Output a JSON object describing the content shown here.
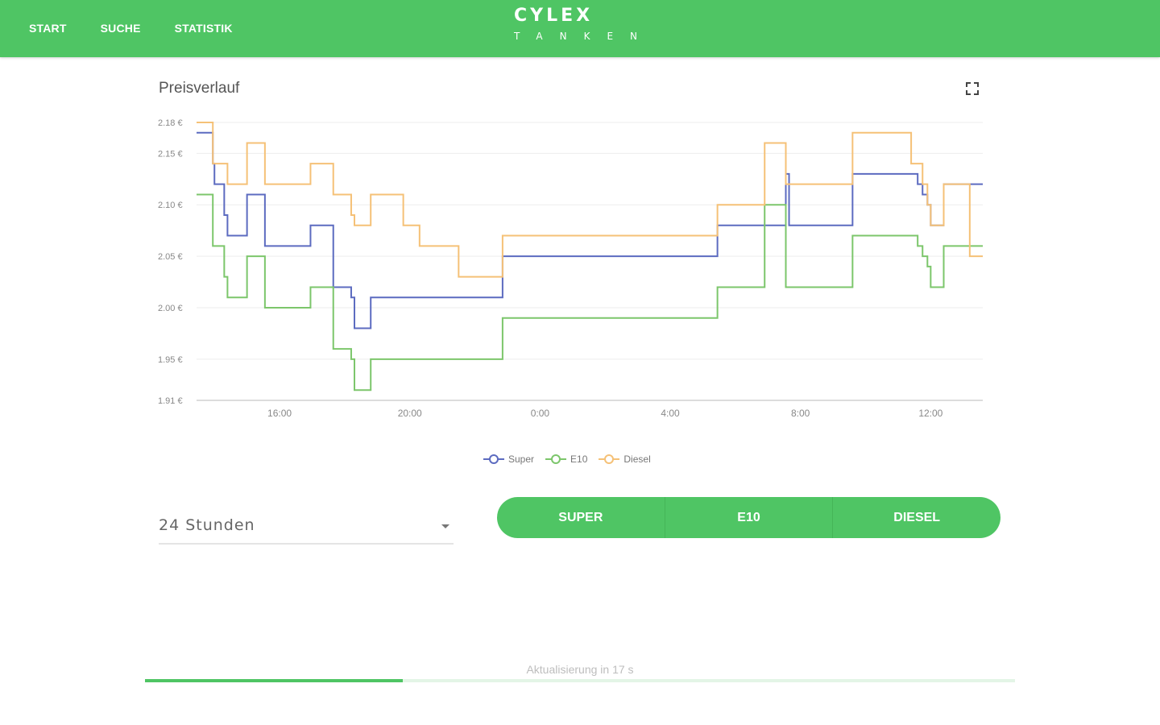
{
  "nav": {
    "items": [
      {
        "label": "START"
      },
      {
        "label": "SUCHE"
      },
      {
        "label": "STATISTIK"
      }
    ]
  },
  "logo": {
    "word": "CYLEX",
    "sub": "TANKEN"
  },
  "card": {
    "title": "Preisverlauf",
    "fullscreen_icon": "fullscreen-icon"
  },
  "chart_data": {
    "type": "line",
    "step": true,
    "title": "Preisverlauf",
    "xlabel": "",
    "ylabel": "",
    "x_range_hours": [
      13.45,
      37.6
    ],
    "ylim": [
      1.91,
      2.18
    ],
    "y_ticks": [
      {
        "value": 2.18,
        "label": "2.18 €"
      },
      {
        "value": 2.15,
        "label": "2.15 €"
      },
      {
        "value": 2.1,
        "label": "2.10 €"
      },
      {
        "value": 2.05,
        "label": "2.05 €"
      },
      {
        "value": 2.0,
        "label": "2.00 €"
      },
      {
        "value": 1.95,
        "label": "1.95 €"
      },
      {
        "value": 1.91,
        "label": "1.91 €"
      }
    ],
    "x_ticks": [
      {
        "value": 16,
        "label": "16:00"
      },
      {
        "value": 20,
        "label": "20:00"
      },
      {
        "value": 24,
        "label": "0:00"
      },
      {
        "value": 28,
        "label": "4:00"
      },
      {
        "value": 32,
        "label": "8:00"
      },
      {
        "value": 36,
        "label": "12:00"
      }
    ],
    "grid": true,
    "legend_position": "bottom",
    "series": [
      {
        "name": "Super",
        "color": "#5c6bc0",
        "points": [
          [
            13.45,
            2.17
          ],
          [
            13.95,
            2.14
          ],
          [
            14.0,
            2.12
          ],
          [
            14.3,
            2.09
          ],
          [
            14.4,
            2.07
          ],
          [
            15.0,
            2.11
          ],
          [
            15.55,
            2.06
          ],
          [
            16.95,
            2.08
          ],
          [
            17.65,
            2.02
          ],
          [
            18.2,
            2.01
          ],
          [
            18.3,
            1.98
          ],
          [
            18.8,
            2.01
          ],
          [
            21.9,
            2.01
          ],
          [
            22.85,
            2.05
          ],
          [
            29.45,
            2.08
          ],
          [
            30.3,
            2.08
          ],
          [
            31.55,
            2.13
          ],
          [
            31.65,
            2.08
          ],
          [
            33.6,
            2.13
          ],
          [
            35.6,
            2.12
          ],
          [
            35.75,
            2.11
          ],
          [
            35.9,
            2.1
          ],
          [
            36.0,
            2.08
          ],
          [
            36.4,
            2.12
          ],
          [
            37.2,
            2.12
          ],
          [
            37.6,
            2.12
          ]
        ]
      },
      {
        "name": "E10",
        "color": "#7cc66b",
        "points": [
          [
            13.45,
            2.11
          ],
          [
            13.95,
            2.06
          ],
          [
            14.3,
            2.03
          ],
          [
            14.4,
            2.01
          ],
          [
            15.0,
            2.05
          ],
          [
            15.55,
            2.0
          ],
          [
            16.95,
            2.02
          ],
          [
            17.65,
            1.96
          ],
          [
            18.2,
            1.95
          ],
          [
            18.3,
            1.92
          ],
          [
            18.8,
            1.95
          ],
          [
            21.9,
            1.95
          ],
          [
            22.85,
            1.99
          ],
          [
            29.45,
            2.02
          ],
          [
            30.3,
            2.02
          ],
          [
            30.9,
            2.1
          ],
          [
            31.55,
            2.02
          ],
          [
            33.6,
            2.07
          ],
          [
            35.6,
            2.06
          ],
          [
            35.75,
            2.05
          ],
          [
            35.9,
            2.04
          ],
          [
            36.0,
            2.02
          ],
          [
            36.4,
            2.06
          ],
          [
            37.2,
            2.06
          ],
          [
            37.6,
            2.06
          ]
        ]
      },
      {
        "name": "Diesel",
        "color": "#f5c177",
        "points": [
          [
            13.45,
            2.18
          ],
          [
            13.95,
            2.14
          ],
          [
            14.4,
            2.12
          ],
          [
            15.0,
            2.16
          ],
          [
            15.55,
            2.12
          ],
          [
            16.95,
            2.14
          ],
          [
            17.65,
            2.11
          ],
          [
            18.2,
            2.09
          ],
          [
            18.3,
            2.08
          ],
          [
            18.8,
            2.11
          ],
          [
            19.8,
            2.08
          ],
          [
            20.3,
            2.06
          ],
          [
            21.5,
            2.03
          ],
          [
            21.9,
            2.03
          ],
          [
            22.85,
            2.07
          ],
          [
            29.45,
            2.1
          ],
          [
            30.3,
            2.1
          ],
          [
            30.9,
            2.16
          ],
          [
            31.55,
            2.12
          ],
          [
            33.6,
            2.17
          ],
          [
            35.0,
            2.17
          ],
          [
            35.4,
            2.14
          ],
          [
            35.75,
            2.12
          ],
          [
            35.9,
            2.1
          ],
          [
            36.0,
            2.08
          ],
          [
            36.4,
            2.12
          ],
          [
            37.2,
            2.05
          ],
          [
            37.6,
            2.05
          ]
        ]
      }
    ]
  },
  "controls": {
    "range_select": {
      "value": "24 Stunden"
    },
    "fuel_buttons": [
      {
        "label": "SUPER"
      },
      {
        "label": "E10"
      },
      {
        "label": "DIESEL"
      }
    ]
  },
  "status": {
    "update_text": "Aktualisierung in 17 s",
    "progress_percent": 29.6,
    "progress_color": "#4fc564"
  }
}
